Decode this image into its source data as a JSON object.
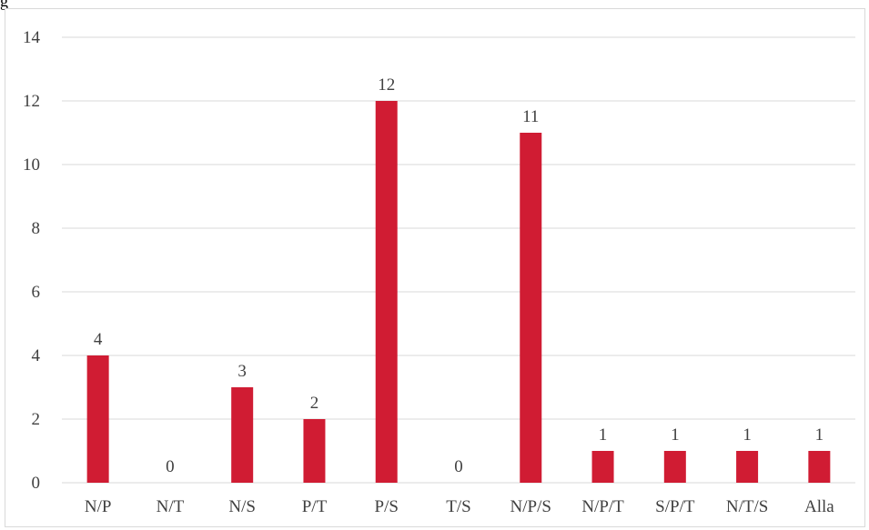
{
  "caption": "g",
  "chart_data": {
    "type": "bar",
    "categories": [
      "N/P",
      "N/T",
      "N/S",
      "P/T",
      "P/S",
      "T/S",
      "N/P/S",
      "N/P/T",
      "S/P/T",
      "N/T/S",
      "Alla"
    ],
    "values": [
      4,
      0,
      3,
      2,
      12,
      0,
      11,
      1,
      1,
      1,
      1
    ],
    "ylim": [
      0,
      14
    ],
    "yticks": [
      0,
      2,
      4,
      6,
      8,
      10,
      12,
      14
    ],
    "grid": true,
    "data_labels": true,
    "title": "",
    "xlabel": "",
    "ylabel": "",
    "bar_color": "#d01c33",
    "grid_color": "#d9d9d9"
  }
}
